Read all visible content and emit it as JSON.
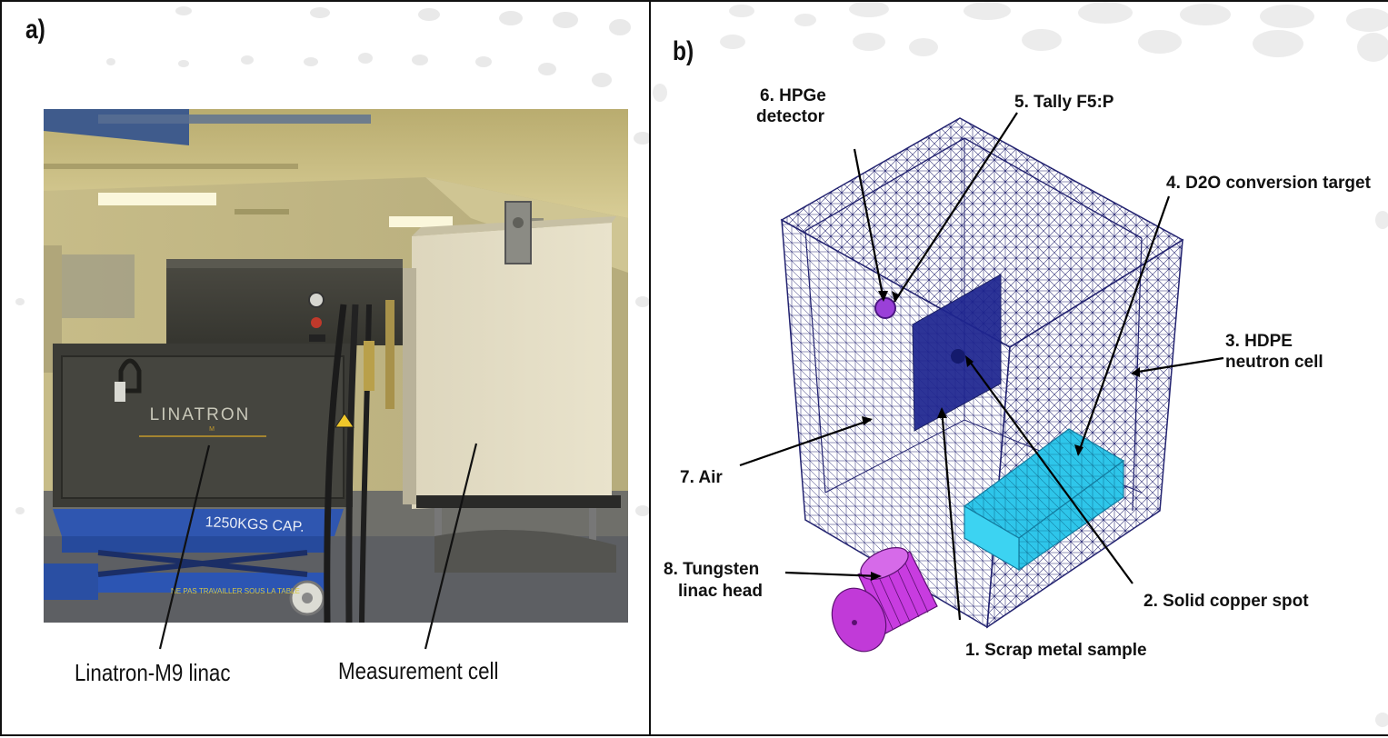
{
  "panel_a": {
    "letter": "a)",
    "photo_text": {
      "brand": "LINATRON",
      "brand_sub": "M",
      "lift_capacity": "1250KGS CAP.",
      "lift_warning": "NE PAS TRAVAILLER SOUS LA TABLE"
    },
    "captions": {
      "linac": "Linatron-M9 linac",
      "cell": "Measurement cell"
    }
  },
  "panel_b": {
    "letter": "b)",
    "labels": {
      "hpge_line1": "6. HPGe",
      "hpge_line2": "detector",
      "tally": "5. Tally F5:P",
      "d2o": "4. D2O conversion target",
      "hdpe_line1": "3. HDPE",
      "hdpe_line2": "neutron cell",
      "air": "7. Air",
      "tungsten_line1": "8. Tungsten",
      "tungsten_line2": "linac head",
      "copper": "2. Solid copper spot",
      "scrap": "1. Scrap metal sample"
    }
  },
  "colors": {
    "mesh": "#2a2a7a",
    "target": "#29c4e8",
    "tungsten": "#c83ce0",
    "sample": "#1e2590",
    "detector": "#9a40d8"
  }
}
